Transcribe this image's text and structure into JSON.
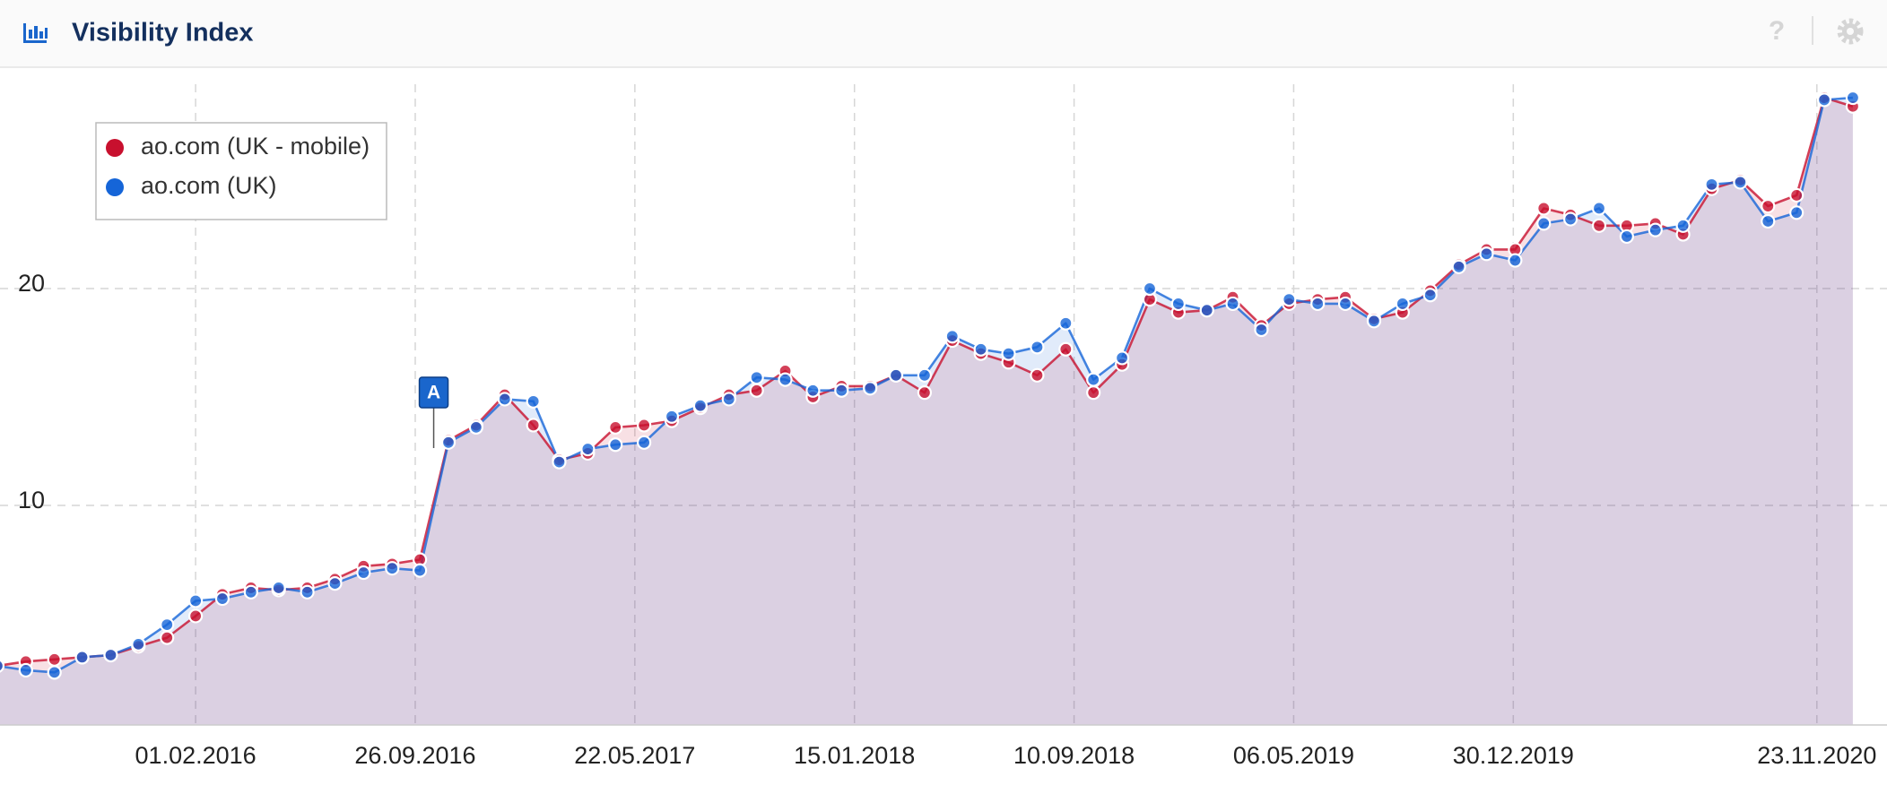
{
  "header": {
    "title": "Visibility Index",
    "help": "?"
  },
  "chart_data": {
    "type": "line",
    "x": [
      "01.07.2015",
      "01.08.2015",
      "01.09.2015",
      "01.10.2015",
      "01.11.2015",
      "01.12.2015",
      "01.01.2016",
      "01.02.2016",
      "01.03.2016",
      "01.04.2016",
      "01.05.2016",
      "01.06.2016",
      "01.07.2016",
      "01.08.2016",
      "01.09.2016",
      "01.10.2016",
      "01.11.2016",
      "01.12.2016",
      "01.01.2017",
      "01.02.2017",
      "01.03.2017",
      "01.04.2017",
      "01.05.2017",
      "01.06.2017",
      "01.07.2017",
      "01.08.2017",
      "01.09.2017",
      "01.10.2017",
      "01.11.2017",
      "01.12.2017",
      "01.01.2018",
      "01.02.2018",
      "01.03.2018",
      "01.04.2018",
      "01.05.2018",
      "01.06.2018",
      "01.07.2018",
      "01.08.2018",
      "01.09.2018",
      "01.10.2018",
      "01.11.2018",
      "01.12.2018",
      "01.01.2019",
      "01.02.2019",
      "01.03.2019",
      "01.04.2019",
      "01.05.2019",
      "01.06.2019",
      "01.07.2019",
      "01.08.2019",
      "01.09.2019",
      "01.10.2019",
      "01.11.2019",
      "01.12.2019",
      "01.01.2020",
      "01.02.2020",
      "01.03.2020",
      "01.04.2020",
      "01.05.2020",
      "01.06.2020",
      "01.07.2020",
      "01.08.2020",
      "01.09.2020",
      "01.10.2020",
      "01.11.2020",
      "01.12.2020",
      "01.01.2021"
    ],
    "series": [
      {
        "name": "ao.com (UK - mobile)",
        "color": "#c8102e",
        "values": [
          2.6,
          2.8,
          2.9,
          3.0,
          3.1,
          3.5,
          3.9,
          4.9,
          5.9,
          6.2,
          6.1,
          6.2,
          6.6,
          7.2,
          7.3,
          7.5,
          13.0,
          13.7,
          15.1,
          13.7,
          12.1,
          12.4,
          13.6,
          13.7,
          13.9,
          14.5,
          15.1,
          15.3,
          16.2,
          15.0,
          15.5,
          15.5,
          16.0,
          15.2,
          17.6,
          17.0,
          16.6,
          16.0,
          17.2,
          15.2,
          16.5,
          19.5,
          18.9,
          19.0,
          19.6,
          18.3,
          19.3,
          19.5,
          19.6,
          18.6,
          18.9,
          19.9,
          21.1,
          21.8,
          21.8,
          23.7,
          23.4,
          22.9,
          22.9,
          23.0,
          22.5,
          24.6,
          25.0,
          23.8,
          24.3,
          28.8,
          28.4
        ]
      },
      {
        "name": "ao.com (UK)",
        "color": "#1565d8",
        "values": [
          2.6,
          2.4,
          2.3,
          3.0,
          3.1,
          3.6,
          4.5,
          5.6,
          5.7,
          6.0,
          6.2,
          6.0,
          6.4,
          6.9,
          7.1,
          7.0,
          12.9,
          13.6,
          14.9,
          14.8,
          12.0,
          12.6,
          12.8,
          12.9,
          14.1,
          14.6,
          14.9,
          15.9,
          15.8,
          15.3,
          15.3,
          15.4,
          16.0,
          16.0,
          17.8,
          17.2,
          17.0,
          17.3,
          18.4,
          15.8,
          16.8,
          20.0,
          19.3,
          19.0,
          19.3,
          18.1,
          19.5,
          19.3,
          19.3,
          18.5,
          19.3,
          19.7,
          21.0,
          21.6,
          21.3,
          23.0,
          23.2,
          23.7,
          22.4,
          22.7,
          22.9,
          24.8,
          24.9,
          23.1,
          23.5,
          28.7,
          28.8
        ]
      }
    ],
    "xlim": [
      "04.07.2015",
      "07.02.2021"
    ],
    "xticks": [
      "01.02.2016",
      "26.09.2016",
      "22.05.2017",
      "15.01.2018",
      "10.09.2018",
      "06.05.2019",
      "30.12.2019",
      "23.11.2020"
    ],
    "ylim": [
      0,
      30
    ],
    "yticks": [
      10,
      20
    ],
    "grid": true,
    "legend": "upper left",
    "annotation": {
      "text": "A",
      "x": "16.10.2016"
    }
  }
}
